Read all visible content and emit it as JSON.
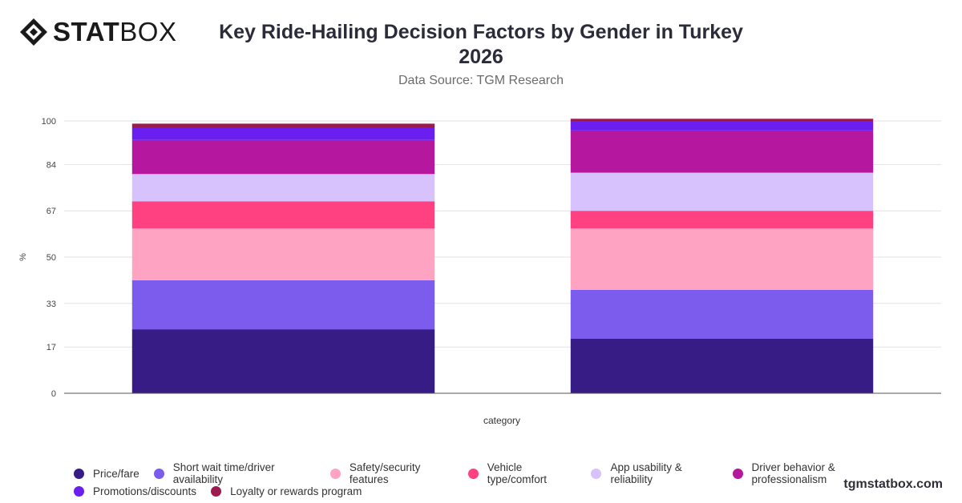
{
  "header": {
    "logo_bold": "STAT",
    "logo_light": "BOX",
    "title_line1": "Key Ride-Hailing Decision Factors by Gender in Turkey",
    "title_line2": "2026",
    "subtitle": "Data Source: TGM Research"
  },
  "watermark": "tgmstatbox.com",
  "chart_data": {
    "type": "bar",
    "stacked": true,
    "title": "Key Ride-Hailing Decision Factors by Gender in Turkey 2026",
    "subtitle": "Data Source: TGM Research",
    "xlabel": "category",
    "ylabel": "%",
    "ylim": [
      0,
      100
    ],
    "yticks": [
      0,
      17,
      33,
      50,
      67,
      84,
      100
    ],
    "grid": true,
    "legend_position": "bottom",
    "categories": [
      "",
      ""
    ],
    "series": [
      {
        "name": "Price/fare",
        "color": "#371c85",
        "values": [
          23.5,
          20.0
        ]
      },
      {
        "name": "Short wait time/driver availability",
        "color": "#7c5ced",
        "values": [
          18.0,
          18.0
        ]
      },
      {
        "name": "Safety/security features",
        "color": "#ffa3c2",
        "values": [
          19.0,
          22.5
        ]
      },
      {
        "name": "Vehicle type/comfort",
        "color": "#ff4081",
        "values": [
          10.0,
          6.5
        ]
      },
      {
        "name": "App usability & reliability",
        "color": "#d7c2fd",
        "values": [
          10.0,
          14.0
        ]
      },
      {
        "name": "Driver behavior & professionalism",
        "color": "#b5179e",
        "values": [
          12.5,
          15.5
        ]
      },
      {
        "name": "Promotions/discounts",
        "color": "#6a1ff0",
        "values": [
          4.5,
          3.5
        ]
      },
      {
        "name": "Loyalty or rewards program",
        "color": "#9b1b4f",
        "values": [
          1.5,
          0.8
        ]
      }
    ]
  }
}
